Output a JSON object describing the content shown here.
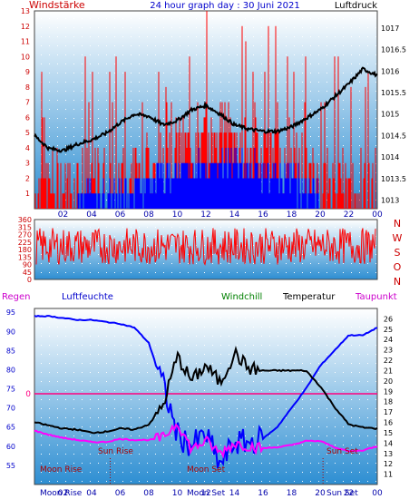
{
  "header": {
    "left_label": "Windstärke",
    "title": "24 hour graph day : 30 Juni 2021",
    "right_label": "Luftdruck"
  },
  "lower_header": {
    "rain": "Regen",
    "humidity": "Luftfeuchte",
    "windchill": "Windchill",
    "temperature": "Temperatur",
    "dewpoint": "Taupunkt"
  },
  "compass": [
    "N",
    "W",
    "S",
    "O",
    "N"
  ],
  "colors": {
    "wind_speed": "#ff0000",
    "wind_gust": "#0000ff",
    "pressure": "#000000",
    "humidity": "#0000ff",
    "temperature": "#000000",
    "dewpoint": "#ff00ff",
    "freeze_line": "#ff0080",
    "left_label": "#cc0000",
    "windchill_label": "#008000"
  },
  "chart_data": [
    {
      "type": "line",
      "name": "wind-pressure",
      "title": "24 hour graph day : 30 Juni 2021",
      "x_ticks": [
        "02",
        "04",
        "06",
        "08",
        "10",
        "12",
        "14",
        "16",
        "18",
        "20",
        "22",
        "00"
      ],
      "y_left": {
        "label": "Windstärke",
        "range": [
          0,
          13
        ],
        "ticks": [
          1,
          2,
          3,
          4,
          5,
          6,
          7,
          8,
          9,
          10,
          11,
          12,
          13
        ]
      },
      "y_right": {
        "label": "Luftdruck",
        "range": [
          1012.8,
          1017.4
        ],
        "ticks": [
          1013,
          1013.5,
          1014,
          1014.5,
          1015,
          1015.5,
          1016,
          1016.5,
          1017
        ]
      },
      "series": [
        {
          "name": "Luftdruck",
          "axis": "right",
          "x": [
            0,
            1,
            2,
            3,
            4,
            5,
            6,
            7,
            8,
            9,
            10,
            11,
            12,
            13,
            14,
            15,
            16,
            17,
            18,
            19,
            20,
            21,
            22,
            23,
            24
          ],
          "values": [
            1014.5,
            1014.2,
            1014.15,
            1014.3,
            1014.4,
            1014.55,
            1014.8,
            1015.0,
            1014.95,
            1014.75,
            1014.85,
            1015.1,
            1015.2,
            1015.0,
            1014.75,
            1014.65,
            1014.6,
            1014.6,
            1014.7,
            1014.9,
            1015.1,
            1015.4,
            1015.7,
            1016.05,
            1015.9
          ]
        }
      ]
    },
    {
      "type": "line",
      "name": "wind-direction",
      "y_range": [
        0,
        360
      ],
      "y_ticks": [
        0,
        45,
        90,
        135,
        180,
        225,
        270,
        315,
        360
      ]
    },
    {
      "type": "line",
      "name": "humidity-temperature",
      "x_ticks": [
        "02",
        "04",
        "06",
        "08",
        "10",
        "12",
        "14",
        "16",
        "18",
        "20",
        "22",
        "00"
      ],
      "y_left": {
        "label": "Luftfeuchte",
        "range": [
          50,
          96
        ],
        "ticks": [
          55,
          60,
          65,
          70,
          75,
          80,
          85,
          90,
          95
        ]
      },
      "y_right": {
        "label": "Temperatur",
        "range": [
          10,
          27
        ],
        "ticks": [
          11,
          12,
          13,
          14,
          15,
          16,
          17,
          18,
          19,
          20,
          21,
          22,
          23,
          24,
          25,
          26
        ]
      },
      "freeze_line_label": "0",
      "annotations": [
        "Sun Rise",
        "Moon Rise",
        "Moon Set",
        "Sun Set"
      ],
      "bottom_labels": [
        "Moon Rise",
        "Moon Set",
        "Sun Set"
      ],
      "series": [
        {
          "name": "Luftfeuchte",
          "axis": "left",
          "x": [
            0,
            1,
            2,
            3,
            4,
            5,
            6,
            7,
            8,
            9,
            10,
            11,
            12,
            13,
            14,
            15,
            16,
            17,
            18,
            19,
            20,
            21,
            22,
            23,
            24
          ],
          "values": [
            94,
            94,
            93.5,
            93,
            93,
            92.5,
            92,
            91,
            87,
            76,
            63,
            60,
            63,
            55,
            61,
            61,
            62,
            65,
            70,
            75,
            81,
            85,
            89,
            89,
            91
          ]
        },
        {
          "name": "Temperatur",
          "axis": "right",
          "x": [
            0,
            1,
            2,
            3,
            4,
            5,
            6,
            7,
            8,
            9,
            10,
            11,
            12,
            13,
            14,
            15,
            16,
            17,
            18,
            19,
            20,
            21,
            22,
            23,
            24
          ],
          "values": [
            16.0,
            15.7,
            15.4,
            15.3,
            15.0,
            15.1,
            15.4,
            15.3,
            15.8,
            17.6,
            22.4,
            20.0,
            21.5,
            19.8,
            22.7,
            21.2,
            21.0,
            21.0,
            21.0,
            21.0,
            19.5,
            17.5,
            15.8,
            15.5,
            15.4
          ]
        },
        {
          "name": "Taupunkt",
          "axis": "right",
          "x": [
            0,
            1,
            2,
            3,
            4,
            5,
            6,
            7,
            8,
            9,
            10,
            11,
            12,
            13,
            14,
            15,
            16,
            17,
            18,
            19,
            20,
            21,
            22,
            23,
            24
          ],
          "values": [
            15.2,
            14.8,
            14.5,
            14.3,
            14.1,
            14.1,
            14.4,
            14.3,
            14.3,
            14.5,
            16.0,
            13.4,
            14.2,
            13.0,
            14.0,
            13.7,
            13.5,
            13.6,
            13.8,
            14.2,
            14.2,
            13.6,
            13.2,
            13.3,
            13.7
          ]
        }
      ]
    }
  ]
}
